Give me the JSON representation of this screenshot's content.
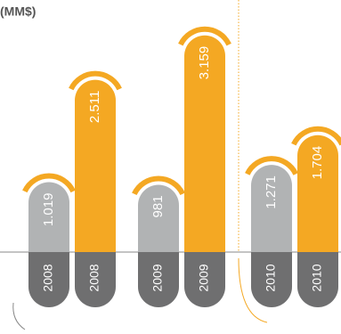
{
  "chart_data": {
    "type": "bar",
    "title": "(MM$)",
    "categories": [
      "2008",
      "2009",
      "2010"
    ],
    "series": [
      {
        "color": "#b1b3b4",
        "values": [
          1019,
          981,
          1271
        ],
        "value_labels": [
          "1.019",
          "981",
          "1.271"
        ]
      },
      {
        "color": "#f4a823",
        "values": [
          2511,
          3159,
          1704
        ],
        "value_labels": [
          "2.511",
          "3.159",
          "1.704"
        ]
      }
    ]
  }
}
